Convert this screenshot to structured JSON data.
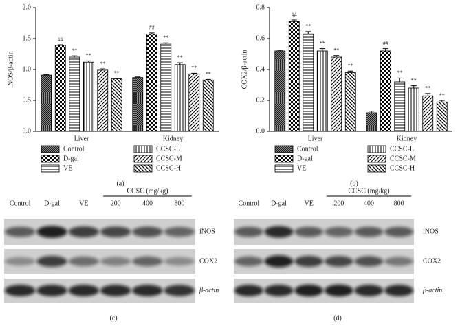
{
  "chart_data": [
    {
      "type": "bar",
      "panel": "(a)",
      "y_label": "iNOS/β-actin",
      "categories": [
        "Liver",
        "Kidney"
      ],
      "ylim": [
        0,
        2
      ],
      "yticks": [
        {
          "value": 0,
          "label": "0.0"
        },
        {
          "value": 0.5,
          "label": "0.5"
        },
        {
          "value": 1,
          "label": "1.0"
        },
        {
          "value": 1.5,
          "label": "1.5"
        },
        {
          "value": 2,
          "label": "2.0"
        }
      ],
      "series": [
        {
          "name": "Control",
          "pattern": "crosshatch",
          "values": [
            0.91,
            0.87
          ],
          "errors": [
            0.01,
            0.01
          ]
        },
        {
          "name": "D-gal",
          "pattern": "checker",
          "values": [
            1.39,
            1.57
          ],
          "errors": [
            0.01,
            0.02
          ],
          "annotations": [
            "##",
            "##"
          ]
        },
        {
          "name": "VE",
          "pattern": "hlines",
          "values": [
            1.2,
            1.41
          ],
          "errors": [
            0.02,
            0.02
          ],
          "annotations": [
            "**",
            "**"
          ]
        },
        {
          "name": "CCSC-L",
          "pattern": "vlines",
          "values": [
            1.12,
            1.08
          ],
          "errors": [
            0.02,
            0.03
          ],
          "annotations": [
            "**",
            "**"
          ]
        },
        {
          "name": "CCSC-M",
          "pattern": "diag",
          "values": [
            0.99,
            0.93
          ],
          "errors": [
            0.02,
            0.01
          ],
          "annotations": [
            "**",
            "**"
          ]
        },
        {
          "name": "CCSC-H",
          "pattern": "diag2",
          "values": [
            0.85,
            0.83
          ],
          "errors": [
            0.01,
            0.01
          ],
          "annotations": [
            "**",
            "**"
          ]
        }
      ]
    },
    {
      "type": "bar",
      "panel": "(b)",
      "y_label": "COX2/β-actin",
      "categories": [
        "Liver",
        "Kidney"
      ],
      "ylim": [
        0,
        0.8
      ],
      "yticks": [
        {
          "value": 0,
          "label": "0.0"
        },
        0.2,
        0.4,
        0.6,
        0.8
      ],
      "series": [
        {
          "name": "Control",
          "pattern": "crosshatch",
          "values": [
            0.52,
            0.12
          ],
          "errors": [
            0.005,
            0.01
          ]
        },
        {
          "name": "D-gal",
          "pattern": "checker",
          "values": [
            0.71,
            0.52
          ],
          "errors": [
            0.01,
            0.015
          ],
          "annotations": [
            "##",
            "##"
          ]
        },
        {
          "name": "VE",
          "pattern": "hlines",
          "values": [
            0.63,
            0.32
          ],
          "errors": [
            0.015,
            0.025
          ],
          "annotations": [
            "**",
            "**"
          ]
        },
        {
          "name": "CCSC-L",
          "pattern": "vlines",
          "values": [
            0.52,
            0.28
          ],
          "errors": [
            0.015,
            0.015
          ],
          "annotations": [
            "**",
            "**"
          ]
        },
        {
          "name": "CCSC-M",
          "pattern": "diag",
          "values": [
            0.48,
            0.23
          ],
          "errors": [
            0.01,
            0.015
          ],
          "annotations": [
            "**",
            "**"
          ]
        },
        {
          "name": "CCSC-H",
          "pattern": "diag2",
          "values": [
            0.38,
            0.19
          ],
          "errors": [
            0.01,
            0.01
          ],
          "annotations": [
            "**",
            "**"
          ]
        }
      ]
    }
  ],
  "blots": [
    {
      "panel": "(c)",
      "lanes": [
        "Control",
        "D-gal",
        "VE"
      ],
      "group_label": "CCSC (mg/kg)",
      "doses": [
        "200",
        "400",
        "800"
      ],
      "rows": [
        "iNOS",
        "COX2",
        "β-actin"
      ]
    },
    {
      "panel": "(d)",
      "lanes": [
        "Control",
        "D-gal",
        "VE"
      ],
      "group_label": "CCSC (mg/kg)",
      "doses": [
        "200",
        "400",
        "800"
      ],
      "rows": [
        "iNOS",
        "COX2",
        "β-actin"
      ]
    }
  ]
}
